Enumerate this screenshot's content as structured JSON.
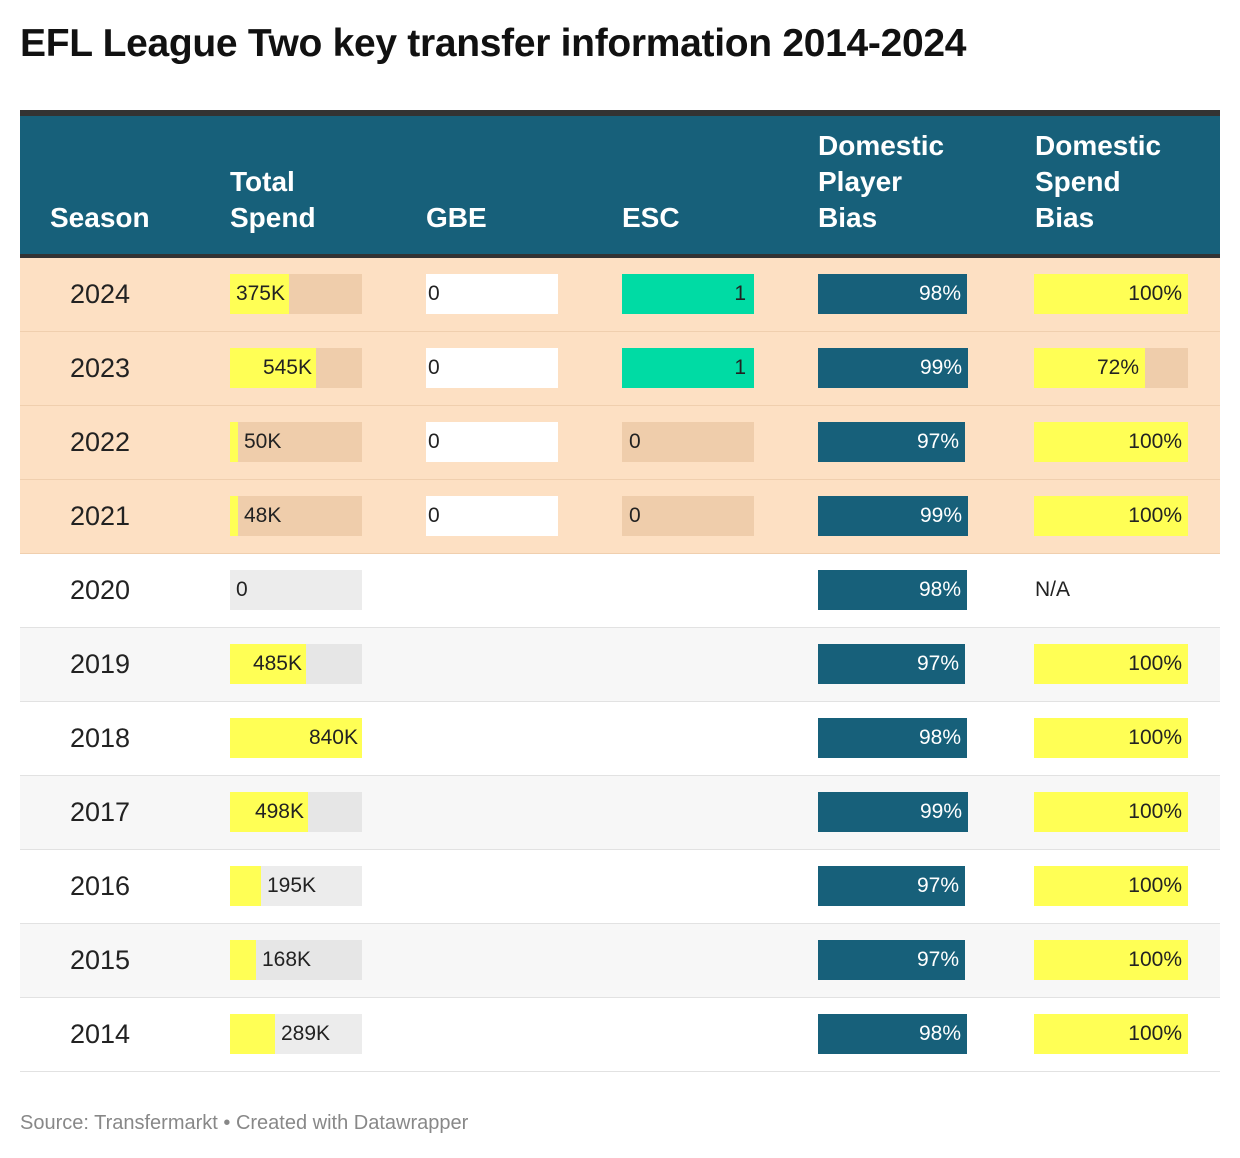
{
  "title": "EFL League Two key transfer information 2014-2024",
  "headers": {
    "season": "Season",
    "total_spend": [
      "Total",
      "Spend"
    ],
    "gbe": "GBE",
    "esc": "ESC",
    "domestic_player_bias": [
      "Domestic",
      "Player",
      "Bias"
    ],
    "domestic_spend_bias": [
      "Domestic",
      "Spend",
      "Bias"
    ]
  },
  "footer": "Source: Transfermarkt • Created with Datawrapper",
  "colors": {
    "header_bg": "#17607a",
    "highlight_row": "#fde0c3",
    "bar_yellow": "#ffff55",
    "esc_green": "#00dba4",
    "player_bias_blue": "#17607a"
  },
  "chart_data": {
    "type": "table",
    "title": "EFL League Two key transfer information 2014-2024",
    "columns": [
      "Season",
      "Total Spend",
      "GBE",
      "ESC",
      "Domestic Player Bias",
      "Domestic Spend Bias"
    ],
    "total_spend_max": 840,
    "rows": [
      {
        "season": "2024",
        "spend_label": "375K",
        "spend": 375,
        "gbe": "0",
        "esc": "1",
        "player_bias_label": "98%",
        "player_bias": 98,
        "spend_bias_label": "100%",
        "spend_bias": 100,
        "highlight": true
      },
      {
        "season": "2023",
        "spend_label": "545K",
        "spend": 545,
        "gbe": "0",
        "esc": "1",
        "player_bias_label": "99%",
        "player_bias": 99,
        "spend_bias_label": "72%",
        "spend_bias": 72,
        "highlight": true
      },
      {
        "season": "2022",
        "spend_label": "50K",
        "spend": 50,
        "gbe": "0",
        "esc": "0",
        "player_bias_label": "97%",
        "player_bias": 97,
        "spend_bias_label": "100%",
        "spend_bias": 100,
        "highlight": true
      },
      {
        "season": "2021",
        "spend_label": "48K",
        "spend": 48,
        "gbe": "0",
        "esc": "0",
        "player_bias_label": "99%",
        "player_bias": 99,
        "spend_bias_label": "100%",
        "spend_bias": 100,
        "highlight": true
      },
      {
        "season": "2020",
        "spend_label": "0",
        "spend": 0,
        "gbe": null,
        "esc": null,
        "player_bias_label": "98%",
        "player_bias": 98,
        "spend_bias_label": "N/A",
        "spend_bias": null,
        "highlight": false
      },
      {
        "season": "2019",
        "spend_label": "485K",
        "spend": 485,
        "gbe": null,
        "esc": null,
        "player_bias_label": "97%",
        "player_bias": 97,
        "spend_bias_label": "100%",
        "spend_bias": 100,
        "highlight": false
      },
      {
        "season": "2018",
        "spend_label": "840K",
        "spend": 840,
        "gbe": null,
        "esc": null,
        "player_bias_label": "98%",
        "player_bias": 98,
        "spend_bias_label": "100%",
        "spend_bias": 100,
        "highlight": false
      },
      {
        "season": "2017",
        "spend_label": "498K",
        "spend": 498,
        "gbe": null,
        "esc": null,
        "player_bias_label": "99%",
        "player_bias": 99,
        "spend_bias_label": "100%",
        "spend_bias": 100,
        "highlight": false
      },
      {
        "season": "2016",
        "spend_label": "195K",
        "spend": 195,
        "gbe": null,
        "esc": null,
        "player_bias_label": "97%",
        "player_bias": 97,
        "spend_bias_label": "100%",
        "spend_bias": 100,
        "highlight": false
      },
      {
        "season": "2015",
        "spend_label": "168K",
        "spend": 168,
        "gbe": null,
        "esc": null,
        "player_bias_label": "97%",
        "player_bias": 97,
        "spend_bias_label": "100%",
        "spend_bias": 100,
        "highlight": false
      },
      {
        "season": "2014",
        "spend_label": "289K",
        "spend": 289,
        "gbe": null,
        "esc": null,
        "player_bias_label": "98%",
        "player_bias": 98,
        "spend_bias_label": "100%",
        "spend_bias": 100,
        "highlight": false
      }
    ]
  }
}
